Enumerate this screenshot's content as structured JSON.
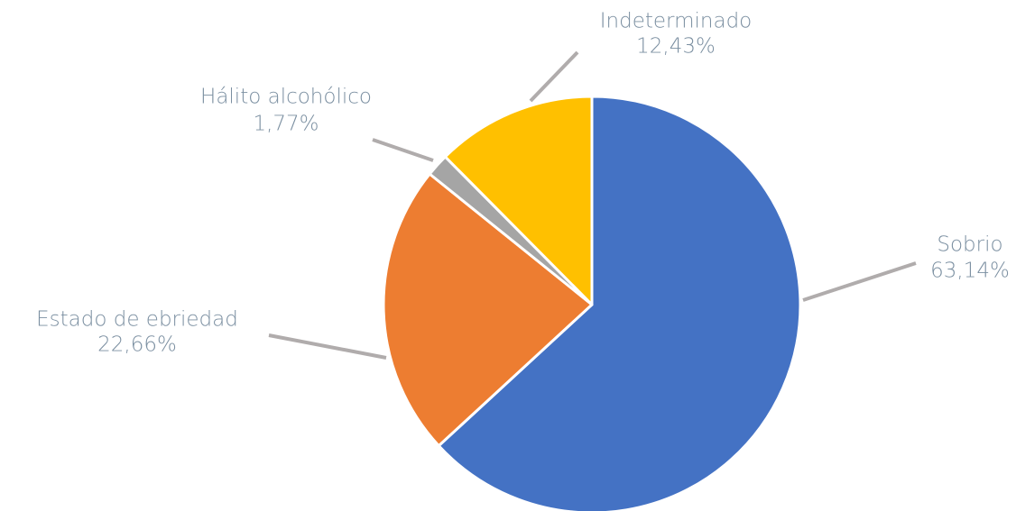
{
  "chart_data": {
    "type": "pie",
    "categories": [
      "Sobrio",
      "Estado de ebriedad",
      "Hálito alcohólico",
      "Indeterminado"
    ],
    "values": [
      63.14,
      22.66,
      1.77,
      12.43
    ],
    "value_labels": [
      "63,14%",
      "22,66%",
      "1,77%",
      "12,43%"
    ],
    "colors": [
      "#4472c4",
      "#ed7d31",
      "#a5a5a5",
      "#ffc000"
    ]
  }
}
